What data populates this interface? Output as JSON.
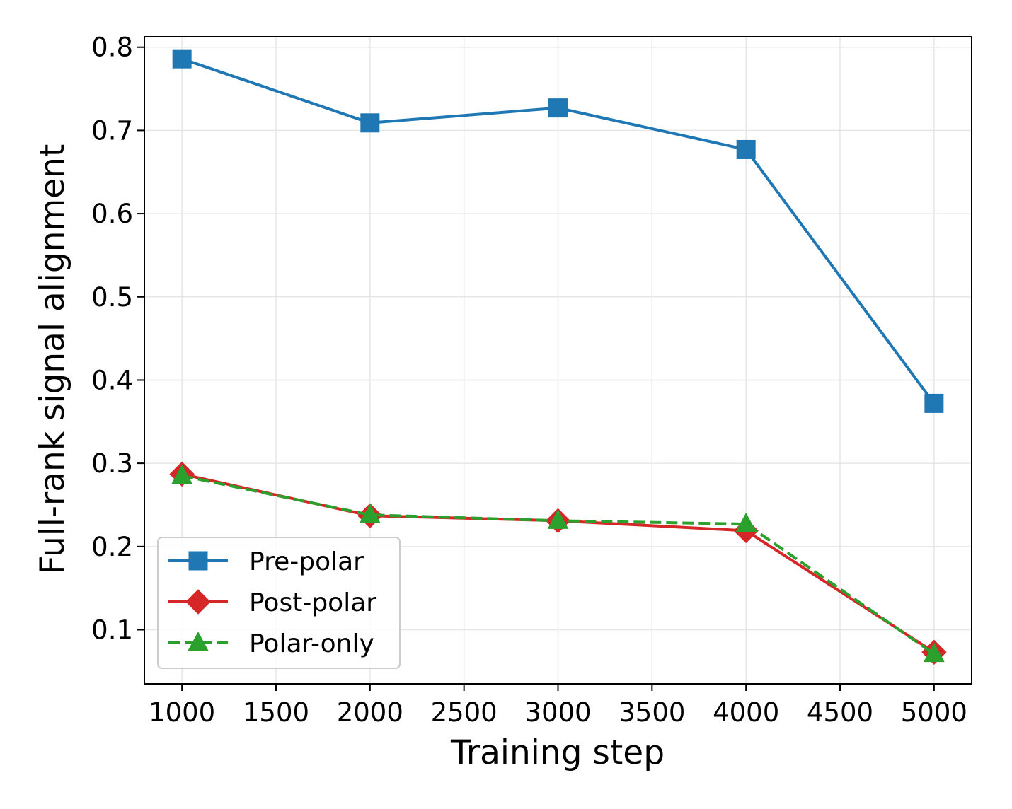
{
  "chart_data": {
    "type": "line",
    "title": "",
    "xlabel": "Training step",
    "ylabel": "Full-rank signal alignment",
    "x": [
      1000,
      2000,
      3000,
      4000,
      5000
    ],
    "xlim": [
      800,
      5200
    ],
    "ylim": [
      0.035,
      0.8125
    ],
    "xticks": [
      1000,
      1500,
      2000,
      2500,
      3000,
      3500,
      4000,
      4500,
      5000
    ],
    "yticks": [
      0.1,
      0.2,
      0.3,
      0.4,
      0.5,
      0.6,
      0.7,
      0.8
    ],
    "xtick_labels": [
      "1000",
      "1500",
      "2000",
      "2500",
      "3000",
      "3500",
      "4000",
      "4500",
      "5000"
    ],
    "ytick_labels": [
      "0.1",
      "0.2",
      "0.3",
      "0.4",
      "0.5",
      "0.6",
      "0.7",
      "0.8"
    ],
    "grid": true,
    "legend_position": "lower-left",
    "series": [
      {
        "name": "Pre-polar",
        "values": [
          0.786,
          0.709,
          0.727,
          0.677,
          0.372
        ],
        "color": "#1f77b4",
        "marker": "square",
        "linestyle": "solid"
      },
      {
        "name": "Post-polar",
        "values": [
          0.287,
          0.237,
          0.231,
          0.219,
          0.073
        ],
        "color": "#d62728",
        "marker": "diamond",
        "linestyle": "solid"
      },
      {
        "name": "Polar-only",
        "values": [
          0.285,
          0.238,
          0.231,
          0.227,
          0.071
        ],
        "color": "#2ca02c",
        "marker": "triangle",
        "linestyle": "dashed"
      }
    ]
  }
}
